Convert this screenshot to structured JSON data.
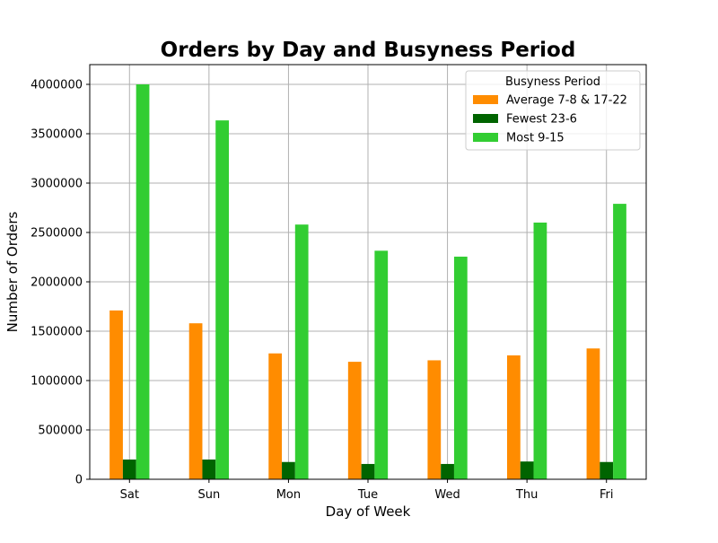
{
  "chart_data": {
    "type": "bar",
    "title": "Orders by Day and Busyness Period",
    "xlabel": "Day of Week",
    "ylabel": "Number of Orders",
    "categories": [
      "Sat",
      "Sun",
      "Mon",
      "Tue",
      "Wed",
      "Thu",
      "Fri"
    ],
    "series": [
      {
        "name": "Average 7-8 & 17-22",
        "color": "#ff8c00",
        "values": [
          1710000,
          1580000,
          1275000,
          1190000,
          1205000,
          1255000,
          1325000
        ]
      },
      {
        "name": "Fewest 23-6",
        "color": "#006400",
        "values": [
          200000,
          200000,
          175000,
          155000,
          155000,
          180000,
          175000
        ]
      },
      {
        "name": "Most 9-15",
        "color": "#32cd32",
        "values": [
          4000000,
          3635000,
          2580000,
          2315000,
          2255000,
          2600000,
          2790000
        ]
      }
    ],
    "ylim": [
      0,
      4200000
    ],
    "yticks": [
      0,
      500000,
      1000000,
      1500000,
      2000000,
      2500000,
      3000000,
      3500000,
      4000000
    ],
    "grid": true,
    "legend": {
      "title": "Busyness Period",
      "placement": "top-right"
    }
  }
}
